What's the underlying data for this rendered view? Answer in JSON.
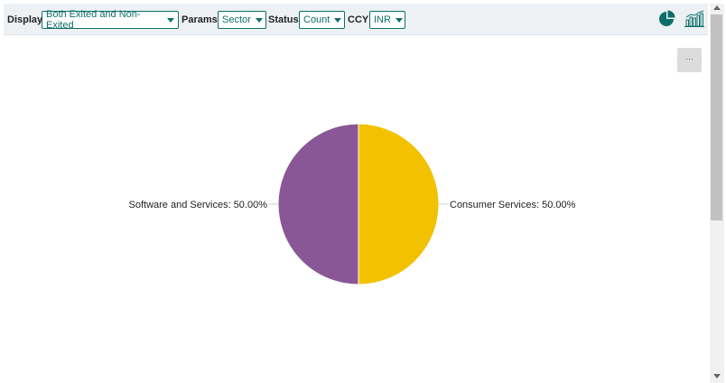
{
  "toolbar": {
    "display_label": "Display",
    "display_value": "Both Exited and Non-Exited",
    "params_label": "Params",
    "params_value": "Sector",
    "status_label": "Status",
    "status_value": "Count",
    "ccy_label": "CCY",
    "ccy_value": "INR",
    "icons": [
      "pie-chart-icon",
      "bar-chart-icon"
    ],
    "accent_color": "#0e6f6a"
  },
  "menu_button": {
    "label": "…"
  },
  "chart_data": {
    "type": "pie",
    "slices": [
      {
        "label": "Consumer Services",
        "value": 50.0,
        "display": "Consumer Services: 50.00%",
        "color": "#f2c200"
      },
      {
        "label": "Software and Services",
        "value": 50.0,
        "display": "Software and Services: 50.00%",
        "color": "#8a5796"
      }
    ],
    "legend": "bottom"
  }
}
